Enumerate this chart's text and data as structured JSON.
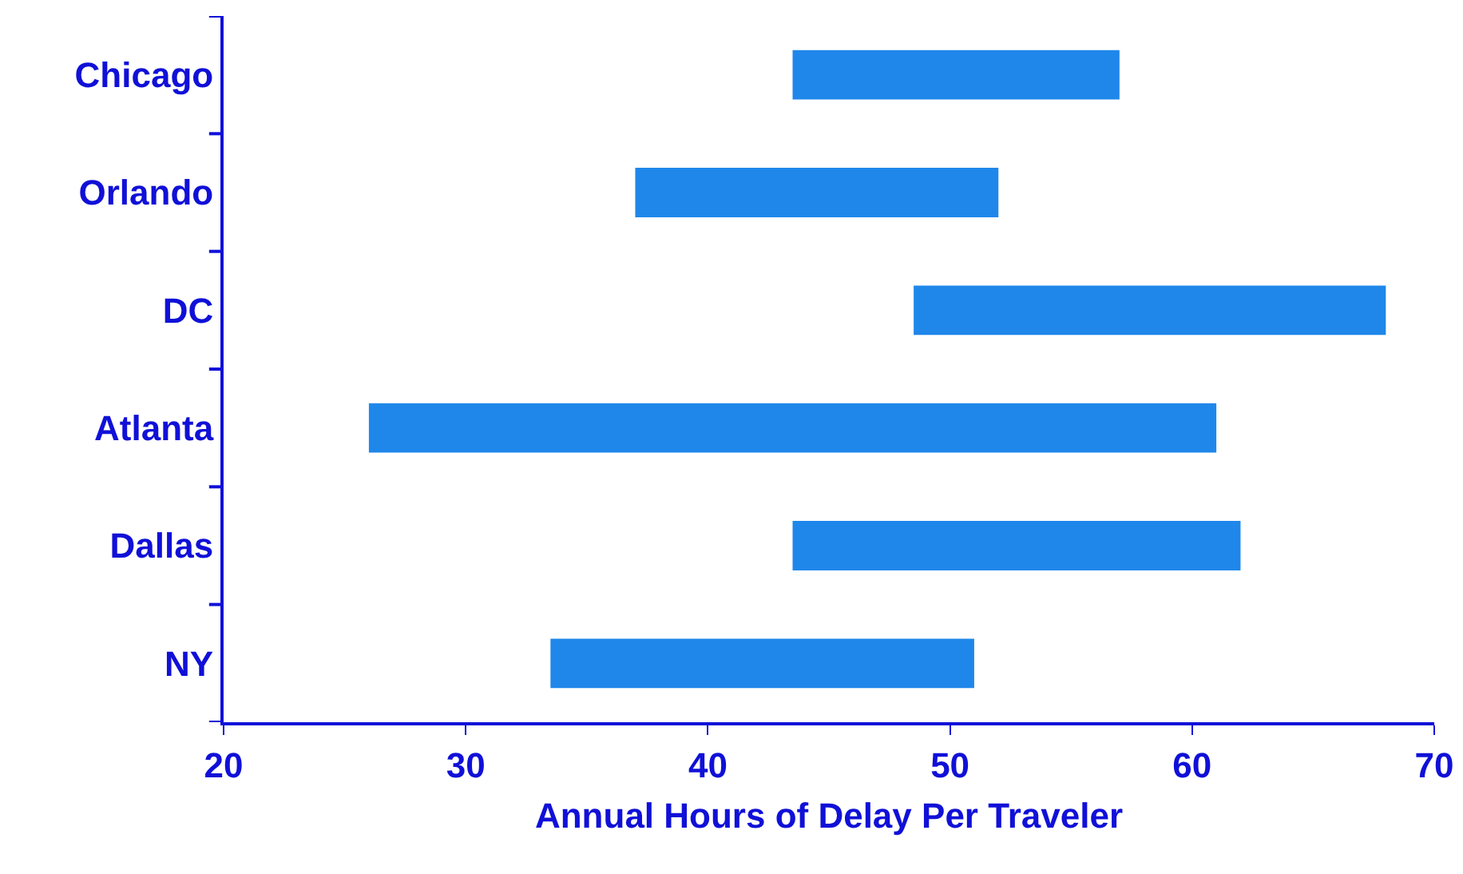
{
  "chart_data": {
    "type": "bar",
    "orientation": "horizontal",
    "xlabel": "Annual Hours of Delay Per Traveler",
    "categories": [
      "Chicago",
      "Orlando",
      "DC",
      "Atlanta",
      "Dallas",
      "NY"
    ],
    "base": [
      43.5,
      37,
      48.5,
      26,
      43.5,
      33.5
    ],
    "values": [
      13.5,
      15,
      19.5,
      35,
      18.5,
      17.5
    ],
    "color": "#1f87ea",
    "xlim": [
      20,
      70
    ],
    "xticks": [
      20,
      30,
      40,
      50,
      60,
      70
    ]
  }
}
